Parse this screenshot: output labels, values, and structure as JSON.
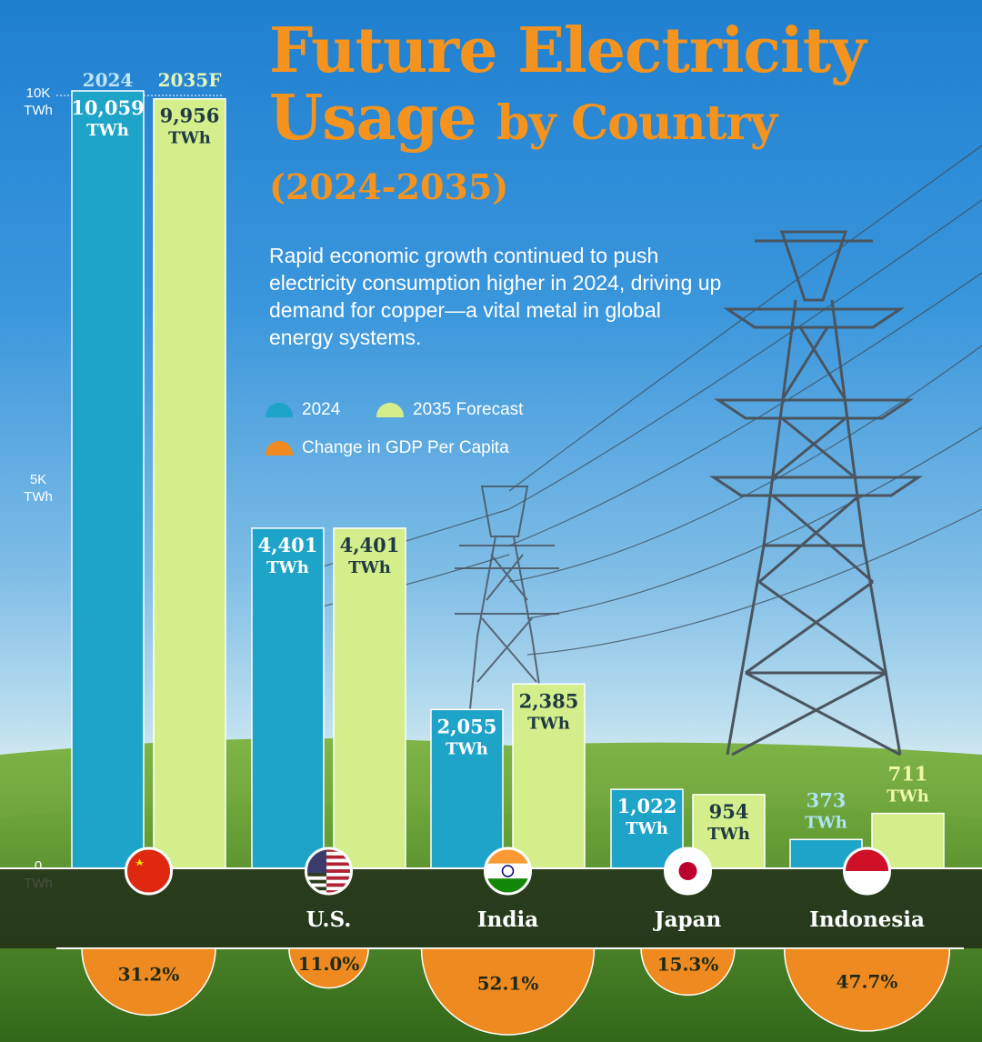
{
  "title": {
    "line1": "Future Electricity",
    "line2a": "Usage",
    "line2b": "by Country",
    "line3": "(2024-2035)"
  },
  "subtitle": "Rapid economic growth continued to push electricity consumption higher in 2024, driving up demand for copper—a vital metal in global energy systems.",
  "legend": {
    "items": [
      {
        "label": "2024",
        "color": "#1ea3c9"
      },
      {
        "label": "2035 Forecast",
        "color": "#d3ee8a"
      },
      {
        "label": "Change in GDP Per Capita",
        "color": "#ee8a1f"
      }
    ]
  },
  "colors": {
    "bar_2024": "#1ea3c9",
    "bar_2035": "#d3ee8a",
    "gdp": "#ee8a1f",
    "title": "#f5931f",
    "value_2024_text": "#ffffff",
    "value_2035_text": "#1f3a44",
    "band": "#1f2a18"
  },
  "chart_data": {
    "type": "bar",
    "title": "Future Electricity Usage by Country (2024-2035)",
    "column_labels": [
      "2024",
      "2035F"
    ],
    "y_ticks": [
      {
        "value": 10000,
        "label": [
          "10K",
          "TWh"
        ]
      },
      {
        "value": 5000,
        "label": [
          "5K",
          "TWh"
        ]
      },
      {
        "value": 0,
        "label": [
          "0",
          "TWh"
        ]
      }
    ],
    "ylim": [
      0,
      10000
    ],
    "unit": "TWh",
    "grid": false,
    "legend_position": "top-center",
    "categories": [
      "China",
      "U.S.",
      "India",
      "Japan",
      "Indonesia"
    ],
    "flags": [
      "china-flag",
      "us-flag",
      "india-flag",
      "japan-flag",
      "indonesia-flag"
    ],
    "series": [
      {
        "name": "2024",
        "values": [
          10059,
          4401,
          2055,
          1022,
          373
        ],
        "labels": [
          "10,059",
          "4,401",
          "2,055",
          "1,022",
          "373"
        ]
      },
      {
        "name": "2035 Forecast",
        "values": [
          9956,
          4401,
          2385,
          954,
          711
        ],
        "labels": [
          "9,956",
          "4,401",
          "2,385",
          "954",
          "711"
        ]
      }
    ],
    "gdp_change": {
      "name": "Change in GDP Per Capita",
      "values": [
        31.2,
        11.0,
        52.1,
        15.3,
        47.7
      ],
      "labels": [
        "31.2%",
        "11.0%",
        "52.1%",
        "15.3%",
        "47.7%"
      ]
    }
  }
}
